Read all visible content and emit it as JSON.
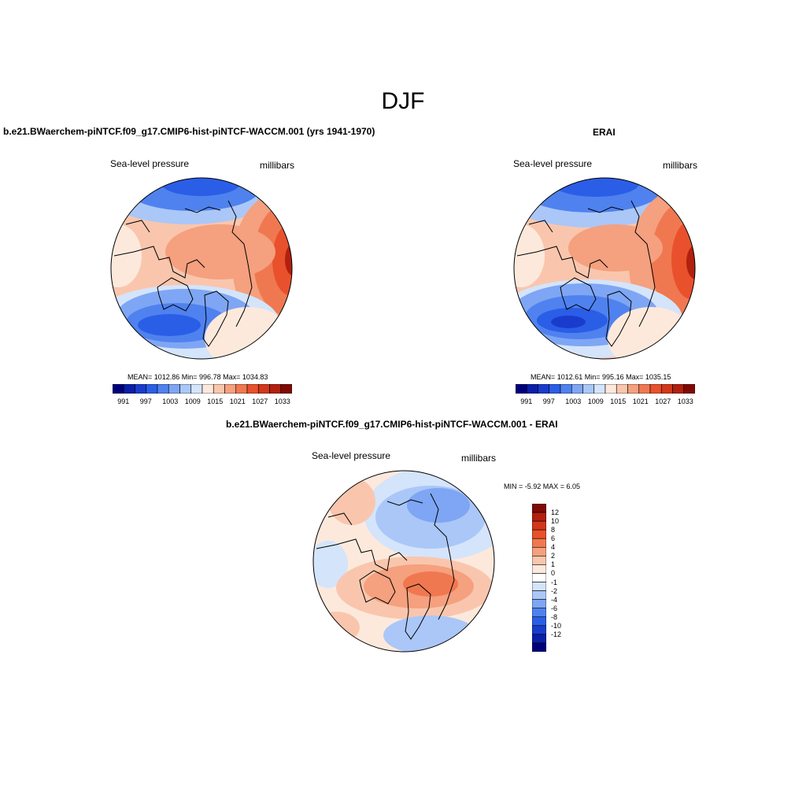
{
  "page": {
    "title": "DJF"
  },
  "panels": [
    {
      "title": "b.e21.BWaerchem-piNTCF.f09_g17.CMIP6-hist-piNTCF-WACCM.001 (yrs 1941-1970)",
      "left_label": "Sea-level pressure",
      "right_label": "millibars",
      "stats": "MEAN= 1012.86  Min= 996.78  Max= 1034.83"
    },
    {
      "title": "ERAI",
      "left_label": "Sea-level pressure",
      "right_label": "millibars",
      "stats": "MEAN= 1012.61  Min= 995.16  Max= 1035.15"
    },
    {
      "title": "b.e21.BWaerchem-piNTCF.f09_g17.CMIP6-hist-piNTCF-WACCM.001 - ERAI",
      "left_label": "Sea-level pressure",
      "right_label": "millibars",
      "stats": "MIN =  -5.92 MAX =   6.05"
    }
  ],
  "colorbar_abs": {
    "colors": [
      "#00007a",
      "#0a1fa8",
      "#1a3ccc",
      "#2b5ee6",
      "#4f82ef",
      "#7ea6f4",
      "#aac7f8",
      "#d4e4fb",
      "#fde9dc",
      "#f9c6ad",
      "#f5a07e",
      "#f07850",
      "#e8512c",
      "#d2371a",
      "#b2200f",
      "#7f0a05"
    ],
    "tick_labels": [
      "991",
      "997",
      "1003",
      "1009",
      "1015",
      "1021",
      "1027",
      "1033"
    ]
  },
  "colorbar_diff": {
    "colors": [
      "#00007a",
      "#0a1fa8",
      "#1a3ccc",
      "#2b5ee6",
      "#4f82ef",
      "#7ea6f4",
      "#aac7f8",
      "#d4e4fb",
      "#ffffff",
      "#fde9dc",
      "#f9c6ad",
      "#f5a07e",
      "#f07850",
      "#e8512c",
      "#d2371a",
      "#b2200f",
      "#7f0a05"
    ],
    "tick_labels": [
      "12",
      "10",
      "8",
      "6",
      "4",
      "2",
      "1",
      "0",
      "-1",
      "-2",
      "-4",
      "-6",
      "-8",
      "-10",
      "-12"
    ]
  }
}
